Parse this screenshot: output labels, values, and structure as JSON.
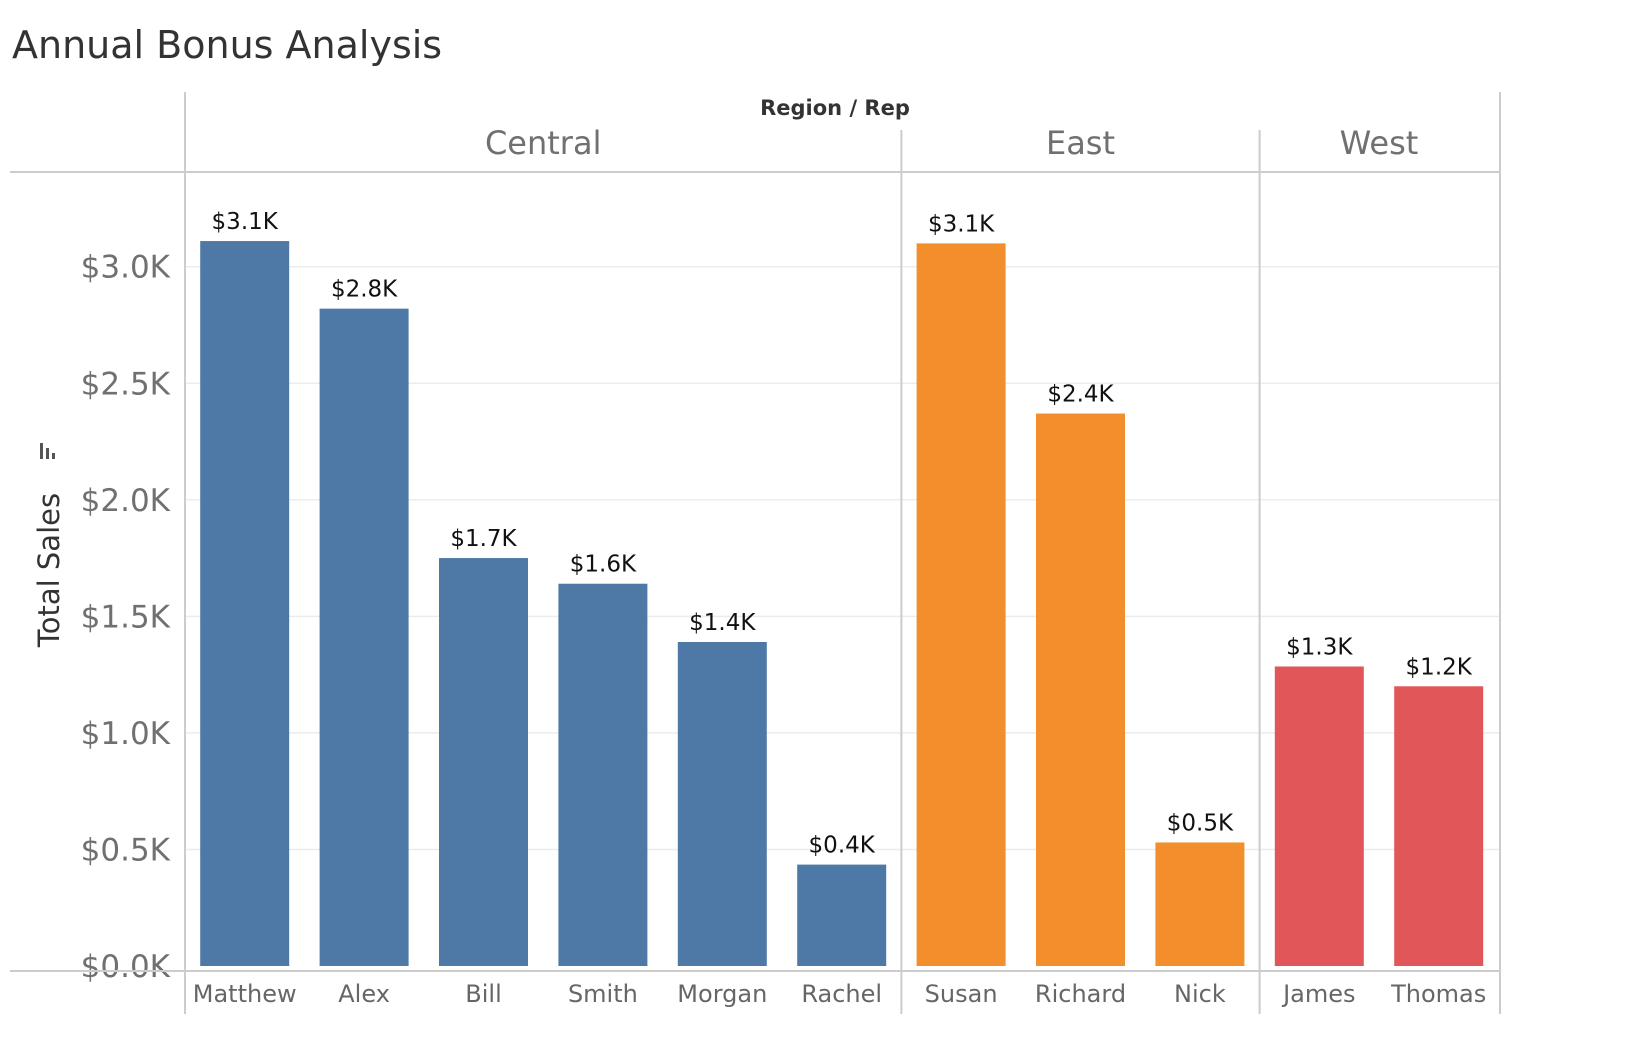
{
  "chart_data": {
    "type": "bar",
    "title": "Annual Bonus Analysis",
    "header_label": "Region / Rep",
    "ylabel": "Total Sales",
    "ylim": [
      0,
      3400
    ],
    "yticks": [
      {
        "value": 0,
        "label": "$0.0K"
      },
      {
        "value": 500,
        "label": "$0.5K"
      },
      {
        "value": 1000,
        "label": "$1.0K"
      },
      {
        "value": 1500,
        "label": "$1.5K"
      },
      {
        "value": 2000,
        "label": "$2.0K"
      },
      {
        "value": 2500,
        "label": "$2.5K"
      },
      {
        "value": 3000,
        "label": "$3.0K"
      }
    ],
    "grid": true,
    "legend": "none",
    "sort_icon": "sort-descending-icon",
    "groups": [
      {
        "name": "Central",
        "color": "#4e79a7",
        "bars": [
          {
            "label": "Matthew",
            "value": 3110,
            "data_label": "$3.1K"
          },
          {
            "label": "Alex",
            "value": 2820,
            "data_label": "$2.8K"
          },
          {
            "label": "Bill",
            "value": 1750,
            "data_label": "$1.7K"
          },
          {
            "label": "Smith",
            "value": 1640,
            "data_label": "$1.6K"
          },
          {
            "label": "Morgan",
            "value": 1390,
            "data_label": "$1.4K"
          },
          {
            "label": "Rachel",
            "value": 435,
            "data_label": "$0.4K"
          }
        ]
      },
      {
        "name": "East",
        "color": "#f28e2b",
        "bars": [
          {
            "label": "Susan",
            "value": 3100,
            "data_label": "$3.1K"
          },
          {
            "label": "Richard",
            "value": 2370,
            "data_label": "$2.4K"
          },
          {
            "label": "Nick",
            "value": 530,
            "data_label": "$0.5K"
          }
        ]
      },
      {
        "name": "West",
        "color": "#e15759",
        "bars": [
          {
            "label": "James",
            "value": 1285,
            "data_label": "$1.3K"
          },
          {
            "label": "Thomas",
            "value": 1200,
            "data_label": "$1.2K"
          }
        ]
      }
    ]
  }
}
